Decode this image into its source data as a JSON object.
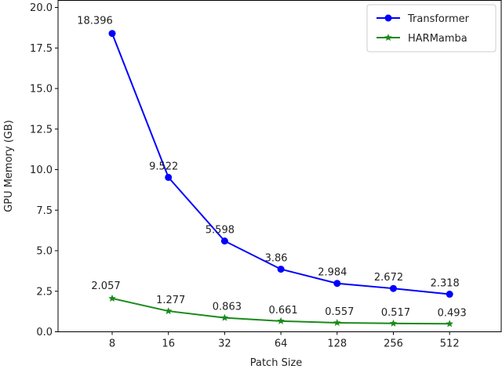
{
  "chart_data": {
    "type": "line",
    "title": "",
    "xlabel": "Patch Size",
    "ylabel": "GPU Memory (GB)",
    "categories": [
      "8",
      "16",
      "32",
      "64",
      "128",
      "256",
      "512"
    ],
    "ylim": [
      0,
      20
    ],
    "yticks": [
      "0.0",
      "2.5",
      "5.0",
      "7.5",
      "10.0",
      "12.5",
      "15.0",
      "17.5",
      "20.0"
    ],
    "grid": false,
    "legend_position": "top-right",
    "series": [
      {
        "name": "Transformer",
        "color": "#0000ff",
        "marker": "circle",
        "values": [
          18.396,
          9.522,
          5.598,
          3.86,
          2.984,
          2.672,
          2.318
        ],
        "labels": [
          "18.396",
          "9.522",
          "5.598",
          "3.86",
          "2.984",
          "2.672",
          "2.318"
        ]
      },
      {
        "name": "HARMamba",
        "color": "#1a8a1a",
        "marker": "star",
        "values": [
          2.057,
          1.277,
          0.863,
          0.661,
          0.557,
          0.517,
          0.493
        ],
        "labels": [
          "2.057",
          "1.277",
          "0.863",
          "0.661",
          "0.557",
          "0.517",
          "0.493"
        ]
      }
    ]
  }
}
